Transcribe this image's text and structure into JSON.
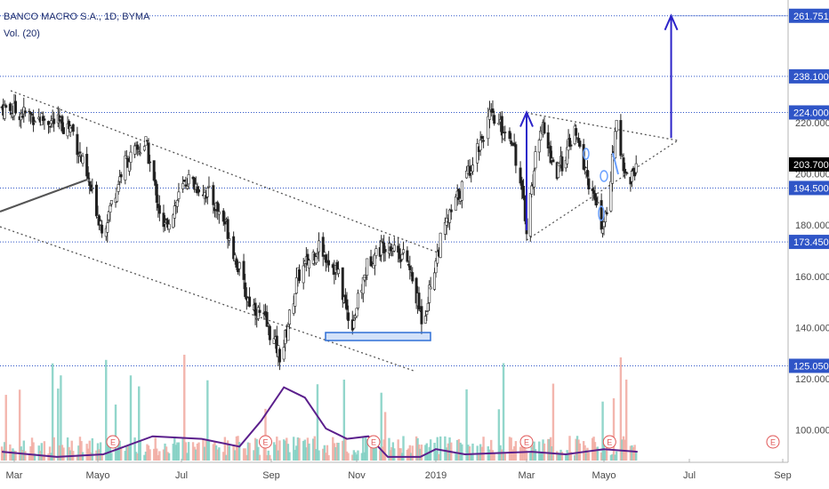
{
  "legend": {
    "symbol": "BANCO MACRO S.A., 1D, BYMA",
    "volume": "Vol. (20)"
  },
  "colors": {
    "up": "#4a4a4a",
    "down": "#1e1e1e",
    "vol_up": "#7fcfc2",
    "vol_down": "#f1a9a0",
    "vol_ma": "#5b1f8c",
    "level_line": "#2f55c7",
    "arrow": "#2b23c9",
    "highlight": "#2f6fd6",
    "trend": "#555555",
    "event": "#e05555"
  },
  "chart_data": {
    "type": "candlestick",
    "title": "BANCO MACRO S.A., 1D, BYMA",
    "x_ticks": [
      "Mar",
      "Mayo",
      "Jul",
      "Sep",
      "Nov",
      "2019",
      "Mar",
      "Mayo",
      "Jul",
      "Sep"
    ],
    "y_ticks": [
      220,
      200,
      180,
      160,
      140,
      120,
      100
    ],
    "y_tick_labels": [
      "220.000",
      "200.000",
      "180.000",
      "160.000",
      "140.000",
      "120.000",
      "100.000"
    ],
    "price_levels": [
      {
        "value": 261.751,
        "label": "261.751"
      },
      {
        "value": 238.1,
        "label": "238.100"
      },
      {
        "value": 224.0,
        "label": "224.000"
      },
      {
        "value": 194.5,
        "label": "194.500"
      },
      {
        "value": 173.45,
        "label": "173.450"
      },
      {
        "value": 125.05,
        "label": "125.050"
      }
    ],
    "last_price": {
      "value": 203.7,
      "label": "203.700"
    },
    "event_marker": "E",
    "price_path": [
      {
        "date": "2018-02-20",
        "close": 226
      },
      {
        "date": "2018-03-05",
        "close": 224
      },
      {
        "date": "2018-03-25",
        "close": 221
      },
      {
        "date": "2018-04-12",
        "close": 218
      },
      {
        "date": "2018-04-22",
        "close": 200
      },
      {
        "date": "2018-05-05",
        "close": 178
      },
      {
        "date": "2018-05-20",
        "close": 204
      },
      {
        "date": "2018-06-05",
        "close": 212
      },
      {
        "date": "2018-06-18",
        "close": 178
      },
      {
        "date": "2018-07-05",
        "close": 198
      },
      {
        "date": "2018-07-20",
        "close": 192
      },
      {
        "date": "2018-08-01",
        "close": 180
      },
      {
        "date": "2018-08-15",
        "close": 152
      },
      {
        "date": "2018-08-28",
        "close": 142
      },
      {
        "date": "2018-09-08",
        "close": 128
      },
      {
        "date": "2018-09-20",
        "close": 160
      },
      {
        "date": "2018-10-05",
        "close": 172
      },
      {
        "date": "2018-10-18",
        "close": 162
      },
      {
        "date": "2018-10-28",
        "close": 140
      },
      {
        "date": "2018-11-10",
        "close": 166
      },
      {
        "date": "2018-11-25",
        "close": 174
      },
      {
        "date": "2018-12-10",
        "close": 166
      },
      {
        "date": "2018-12-22",
        "close": 142
      },
      {
        "date": "2019-01-05",
        "close": 176
      },
      {
        "date": "2019-01-20",
        "close": 198
      },
      {
        "date": "2019-02-05",
        "close": 222
      },
      {
        "date": "2019-02-20",
        "close": 214
      },
      {
        "date": "2019-03-01",
        "close": 180
      },
      {
        "date": "2019-03-12",
        "close": 220
      },
      {
        "date": "2019-03-25",
        "close": 200
      },
      {
        "date": "2019-04-08",
        "close": 216
      },
      {
        "date": "2019-04-22",
        "close": 192
      },
      {
        "date": "2019-05-01",
        "close": 178
      },
      {
        "date": "2019-05-10",
        "close": 218
      },
      {
        "date": "2019-05-18",
        "close": 196
      },
      {
        "date": "2019-05-25",
        "close": 204
      }
    ],
    "volume_ma_path": [
      {
        "date": "2018-02-20",
        "value": 91
      },
      {
        "date": "2018-04-01",
        "value": 89
      },
      {
        "date": "2018-05-05",
        "value": 90
      },
      {
        "date": "2018-06-10",
        "value": 97
      },
      {
        "date": "2018-07-15",
        "value": 96
      },
      {
        "date": "2018-08-10",
        "value": 93
      },
      {
        "date": "2018-08-25",
        "value": 103
      },
      {
        "date": "2018-09-10",
        "value": 116
      },
      {
        "date": "2018-09-25",
        "value": 112
      },
      {
        "date": "2018-10-10",
        "value": 100
      },
      {
        "date": "2018-10-25",
        "value": 96
      },
      {
        "date": "2018-11-10",
        "value": 97
      },
      {
        "date": "2018-11-25",
        "value": 89
      },
      {
        "date": "2018-12-20",
        "value": 89
      },
      {
        "date": "2019-01-01",
        "value": 92
      },
      {
        "date": "2019-01-20",
        "value": 90
      },
      {
        "date": "2019-03-05",
        "value": 91
      },
      {
        "date": "2019-04-01",
        "value": 90
      },
      {
        "date": "2019-05-01",
        "value": 92
      },
      {
        "date": "2019-05-25",
        "value": 91
      }
    ],
    "annotations": [
      {
        "kind": "arrow",
        "from": {
          "date": "2019-03-01",
          "value": 178
        },
        "to": {
          "date": "2019-03-01",
          "value": 224
        }
      },
      {
        "kind": "arrow",
        "from": {
          "date": "2019-06-18",
          "value": 214
        },
        "to": {
          "date": "2019-06-18",
          "value": 261.751
        }
      },
      {
        "kind": "triangle",
        "points": [
          {
            "date": "2019-03-01",
            "value": 224
          },
          {
            "date": "2019-06-22",
            "value": 214
          },
          {
            "date": "2019-03-01",
            "value": 173.45
          }
        ]
      }
    ]
  }
}
